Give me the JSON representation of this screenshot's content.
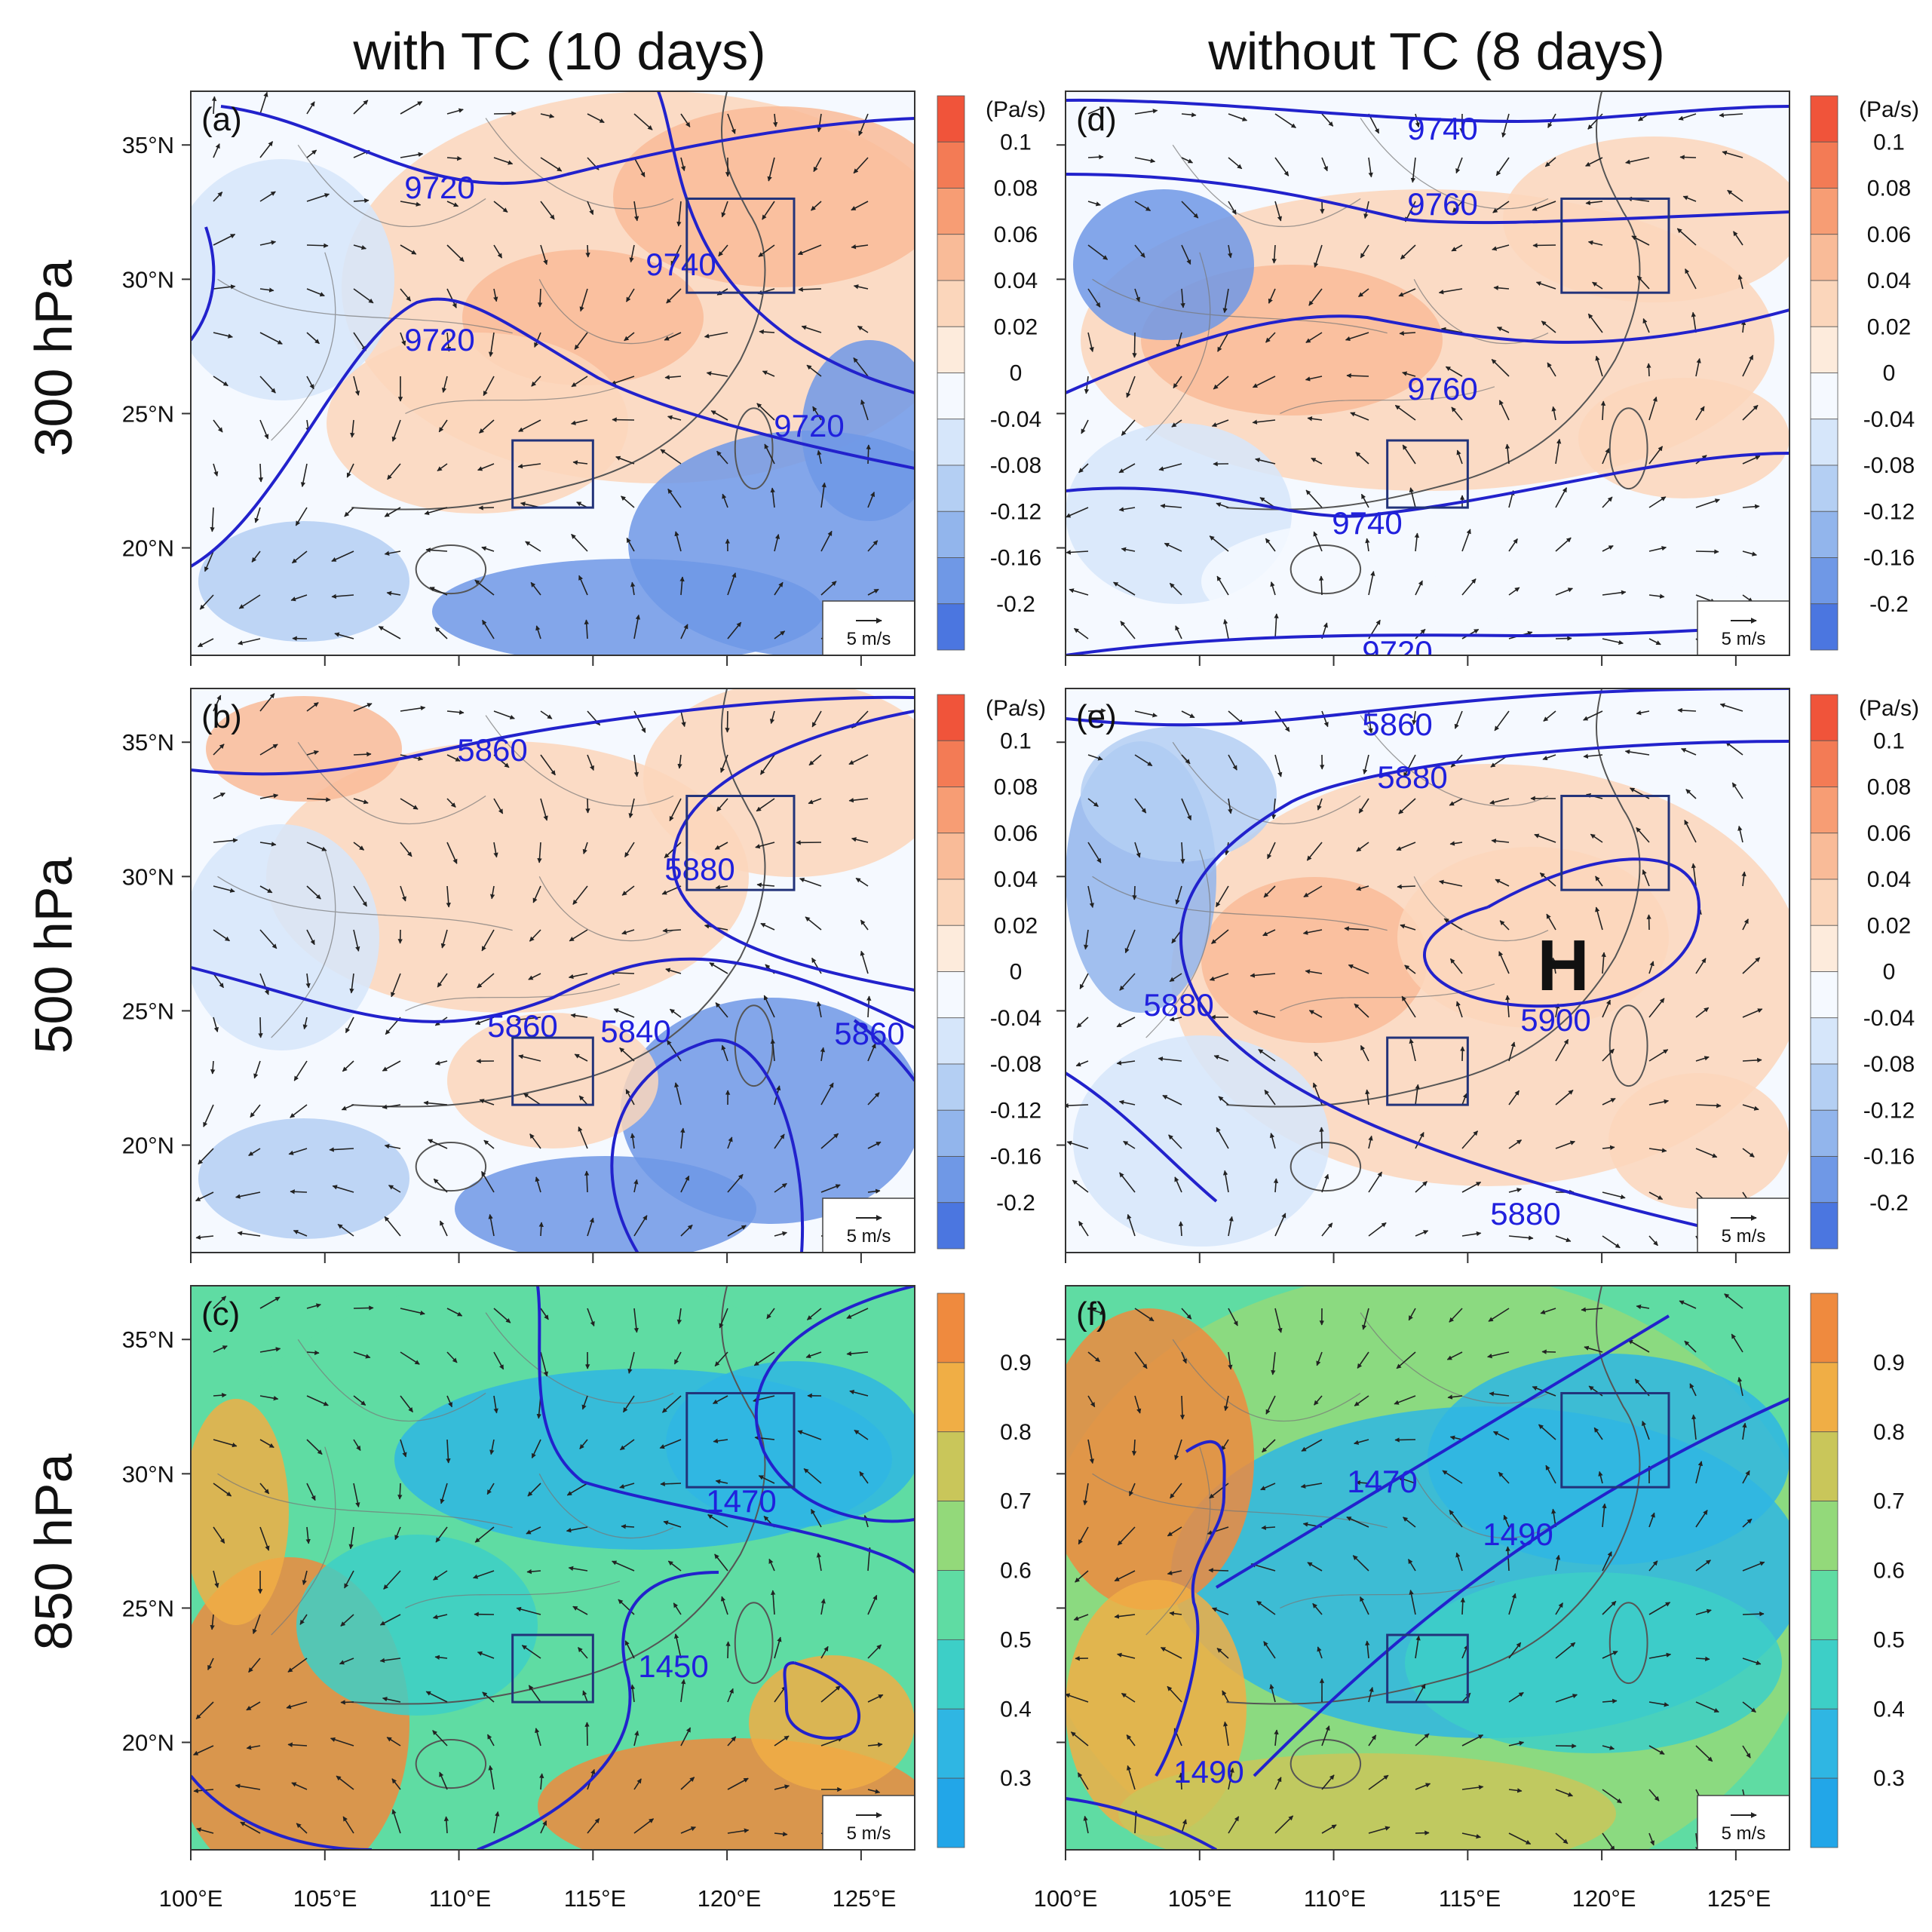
{
  "columns": [
    "with TC (10 days)",
    "without TC (8 days)"
  ],
  "rows": [
    "300 hPa",
    "500 hPa",
    "850 hPa"
  ],
  "x_ticks": [
    "100°E",
    "105°E",
    "110°E",
    "115°E",
    "120°E",
    "125°E"
  ],
  "y_ticks": [
    "35°N",
    "30°N",
    "25°N",
    "20°N"
  ],
  "x_range": [
    100,
    127
  ],
  "y_range": [
    16,
    37
  ],
  "colorbar_omega": {
    "unit": "(Pa/s)",
    "labels": [
      "0.1",
      "0.08",
      "0.06",
      "0.04",
      "0.02",
      "0",
      "-0.04",
      "-0.08",
      "-0.12",
      "-0.16",
      "-0.2"
    ],
    "colors": [
      "#f0543a",
      "#f37b55",
      "#f79d74",
      "#f9bb98",
      "#fbd6bb",
      "#fdebdc",
      "#f5f9ff",
      "#d6e6fa",
      "#b4cff3",
      "#92b5ec",
      "#6f98e6",
      "#4b76e0"
    ]
  },
  "colorbar_rh": {
    "labels": [
      "0.9",
      "0.8",
      "0.7",
      "0.6",
      "0.5",
      "0.4",
      "0.3"
    ],
    "colors": [
      "#ef8a3e",
      "#f0ae45",
      "#c9c65a",
      "#93d97a",
      "#5fdca3",
      "#3dcfc7",
      "#2fb6e3",
      "#22a6e8"
    ]
  },
  "reference_vector": "5 m/s",
  "panels": [
    {
      "id": "a",
      "label": "(a)",
      "level": "300 hPa",
      "field": "omega",
      "contour_labels": [
        "9720",
        "9740",
        "9720",
        "9720"
      ]
    },
    {
      "id": "d",
      "label": "(d)",
      "level": "300 hPa",
      "field": "omega",
      "contour_labels": [
        "9740",
        "9760",
        "9760",
        "9740",
        "9720"
      ]
    },
    {
      "id": "b",
      "label": "(b)",
      "level": "500 hPa",
      "field": "omega",
      "contour_labels": [
        "5860",
        "5880",
        "5860",
        "5840",
        "5860"
      ]
    },
    {
      "id": "e",
      "label": "(e)",
      "level": "500 hPa",
      "field": "omega",
      "contour_labels": [
        "5860",
        "5880",
        "5880",
        "5900",
        "5880"
      ],
      "high_label": "H"
    },
    {
      "id": "c",
      "label": "(c)",
      "level": "850 hPa",
      "field": "rh",
      "contour_labels": [
        "1470",
        "1450"
      ]
    },
    {
      "id": "f",
      "label": "(f)",
      "level": "850 hPa",
      "field": "rh",
      "contour_labels": [
        "1470",
        "1490",
        "1490"
      ]
    }
  ],
  "boxes": [
    {
      "name": "north-box",
      "lon": [
        118.5,
        122.5
      ],
      "lat": [
        29.5,
        33
      ]
    },
    {
      "name": "south-box",
      "lon": [
        112,
        115
      ],
      "lat": [
        21.5,
        24
      ]
    }
  ],
  "contour_color": "#2222cc"
}
